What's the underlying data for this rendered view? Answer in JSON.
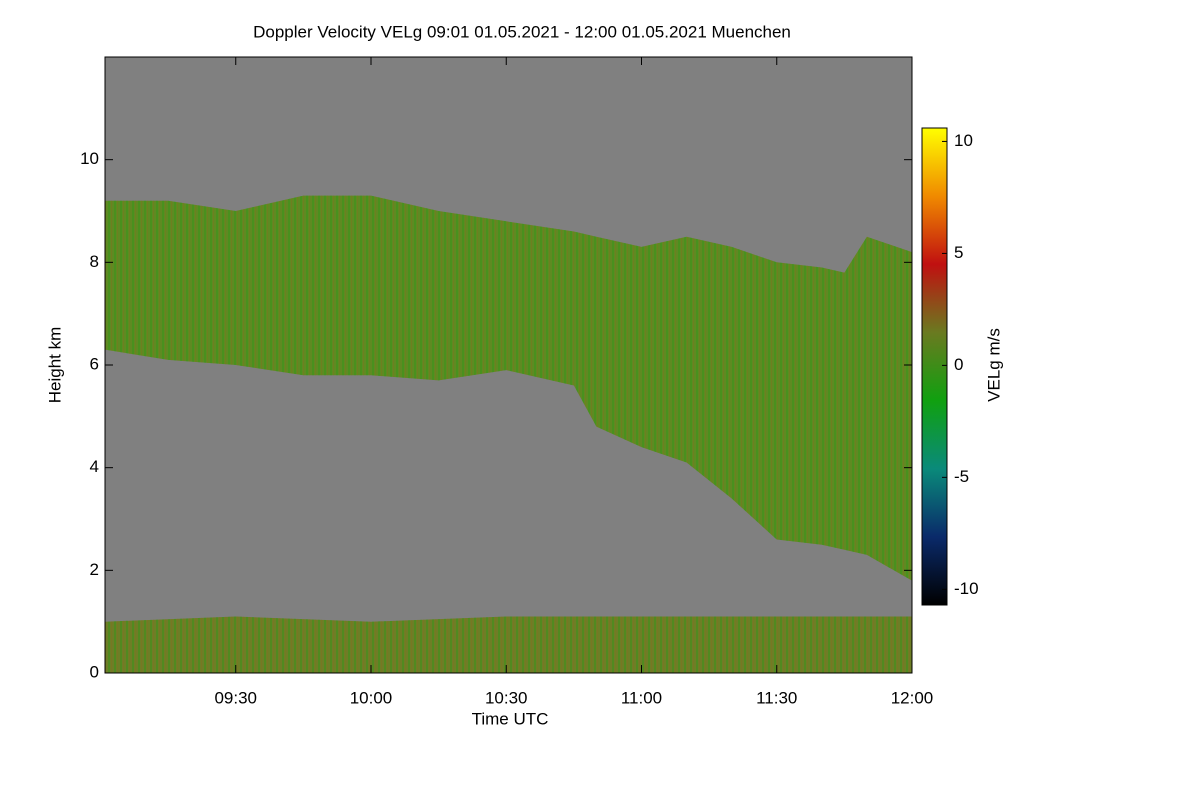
{
  "chart_data": {
    "type": "heatmap",
    "title": "Doppler Velocity VELg   09:01 01.05.2021 - 12:00 01.05.2021 Muenchen",
    "x_label": "Time UTC",
    "y_label": "Height km",
    "colorbar_label": "VELg m/s",
    "background": "#808080",
    "xlim": [
      541,
      720
    ],
    "xticks": [
      {
        "value": 570,
        "label": "09:30"
      },
      {
        "value": 600,
        "label": "10:00"
      },
      {
        "value": 630,
        "label": "10:30"
      },
      {
        "value": 660,
        "label": "11:00"
      },
      {
        "value": 690,
        "label": "11:30"
      },
      {
        "value": 720,
        "label": "12:00"
      }
    ],
    "ylim": [
      0,
      12
    ],
    "yticks": [
      0,
      2,
      4,
      6,
      8,
      10
    ],
    "clim": [
      -10.7,
      10.6
    ],
    "cticks": [
      -10,
      -5,
      0,
      5,
      10
    ],
    "colormap": [
      "#000000",
      "#0a2a6a",
      "#0a8a7a",
      "#10a010",
      "#6a7a20",
      "#c01010",
      "#f08a00",
      "#ffff00"
    ],
    "layers": [
      {
        "color": "#5f8a22",
        "x": [
          541,
          555,
          570,
          585,
          600,
          615,
          630,
          645,
          650,
          660,
          670,
          680,
          690,
          700,
          705,
          710,
          720
        ],
        "top": [
          9.2,
          9.2,
          9.0,
          9.3,
          9.3,
          9.0,
          8.8,
          8.6,
          8.5,
          8.3,
          8.5,
          8.3,
          8.0,
          7.9,
          7.8,
          8.5,
          8.2
        ],
        "base": [
          6.3,
          6.1,
          6.0,
          5.8,
          5.8,
          5.7,
          5.9,
          5.6,
          4.8,
          4.4,
          4.1,
          3.4,
          2.6,
          2.5,
          2.4,
          2.3,
          1.8
        ]
      },
      {
        "color": "#6e7e26",
        "x": [
          541,
          570,
          600,
          630,
          660,
          690,
          720
        ],
        "top": [
          1.0,
          1.1,
          1.0,
          1.1,
          1.1,
          1.1,
          1.1
        ],
        "base": [
          0,
          0,
          0,
          0,
          0,
          0,
          0
        ]
      }
    ]
  }
}
